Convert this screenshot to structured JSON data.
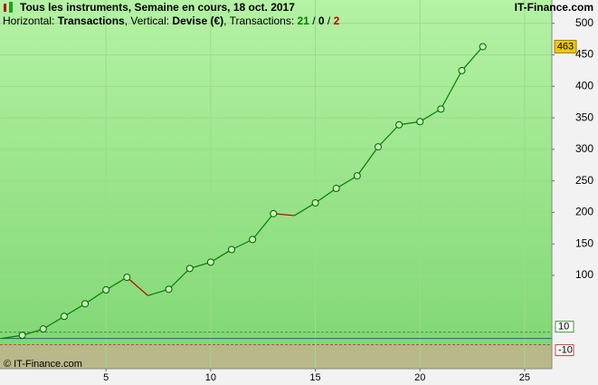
{
  "chart_data": {
    "type": "line",
    "title": "Tous les instruments, Semaine en cours, 18 oct. 2017",
    "site": "IT-Finance.com",
    "subtitle": {
      "horizontal_label": "Horizontal: ",
      "horizontal": "Transactions",
      "vertical_label": ", Vertical: ",
      "vertical": "Devise (€)",
      "count_label": ", Transactions: ",
      "wins": 21,
      "sep1": " / ",
      "even": 0,
      "sep2": " / ",
      "losses": 2
    },
    "copyright": "© IT-Finance.com",
    "x": [
      0,
      1,
      2,
      3,
      4,
      5,
      6,
      7,
      8,
      9,
      10,
      11,
      12,
      13,
      14,
      15,
      16,
      17,
      18,
      19,
      20,
      21,
      22,
      23
    ],
    "values": [
      0,
      5,
      15,
      35,
      55,
      77,
      97,
      68,
      78,
      111,
      121,
      141,
      157,
      198,
      195,
      215,
      238,
      258,
      304,
      339,
      344,
      364,
      425,
      463
    ],
    "markers": [
      false,
      true,
      true,
      true,
      true,
      true,
      true,
      false,
      true,
      true,
      true,
      true,
      true,
      true,
      false,
      true,
      true,
      true,
      true,
      true,
      true,
      true,
      true,
      true
    ],
    "point_colors": [
      "#008000",
      "#008000",
      "#008000",
      "#008000",
      "#008000",
      "#008000",
      "#008000",
      "#c00000",
      "#008000",
      "#008000",
      "#008000",
      "#008000",
      "#008000",
      "#008000",
      "#c00000",
      "#008000",
      "#008000",
      "#008000",
      "#008000",
      "#008000",
      "#008000",
      "#008000",
      "#008000",
      "#008000"
    ],
    "xlim": [
      -0.065,
      26.3
    ],
    "ylim": [
      -48,
      537
    ],
    "xticks": [
      5,
      10,
      15,
      20,
      25
    ],
    "yticks": [
      100,
      150,
      200,
      250,
      300,
      350,
      400,
      450,
      500
    ],
    "levels": [
      {
        "value": 10,
        "color": "#3c9a3c"
      },
      {
        "value": 0,
        "color": "#3050c0"
      },
      {
        "value": -10,
        "color": "#d04040"
      }
    ],
    "grid": true
  }
}
